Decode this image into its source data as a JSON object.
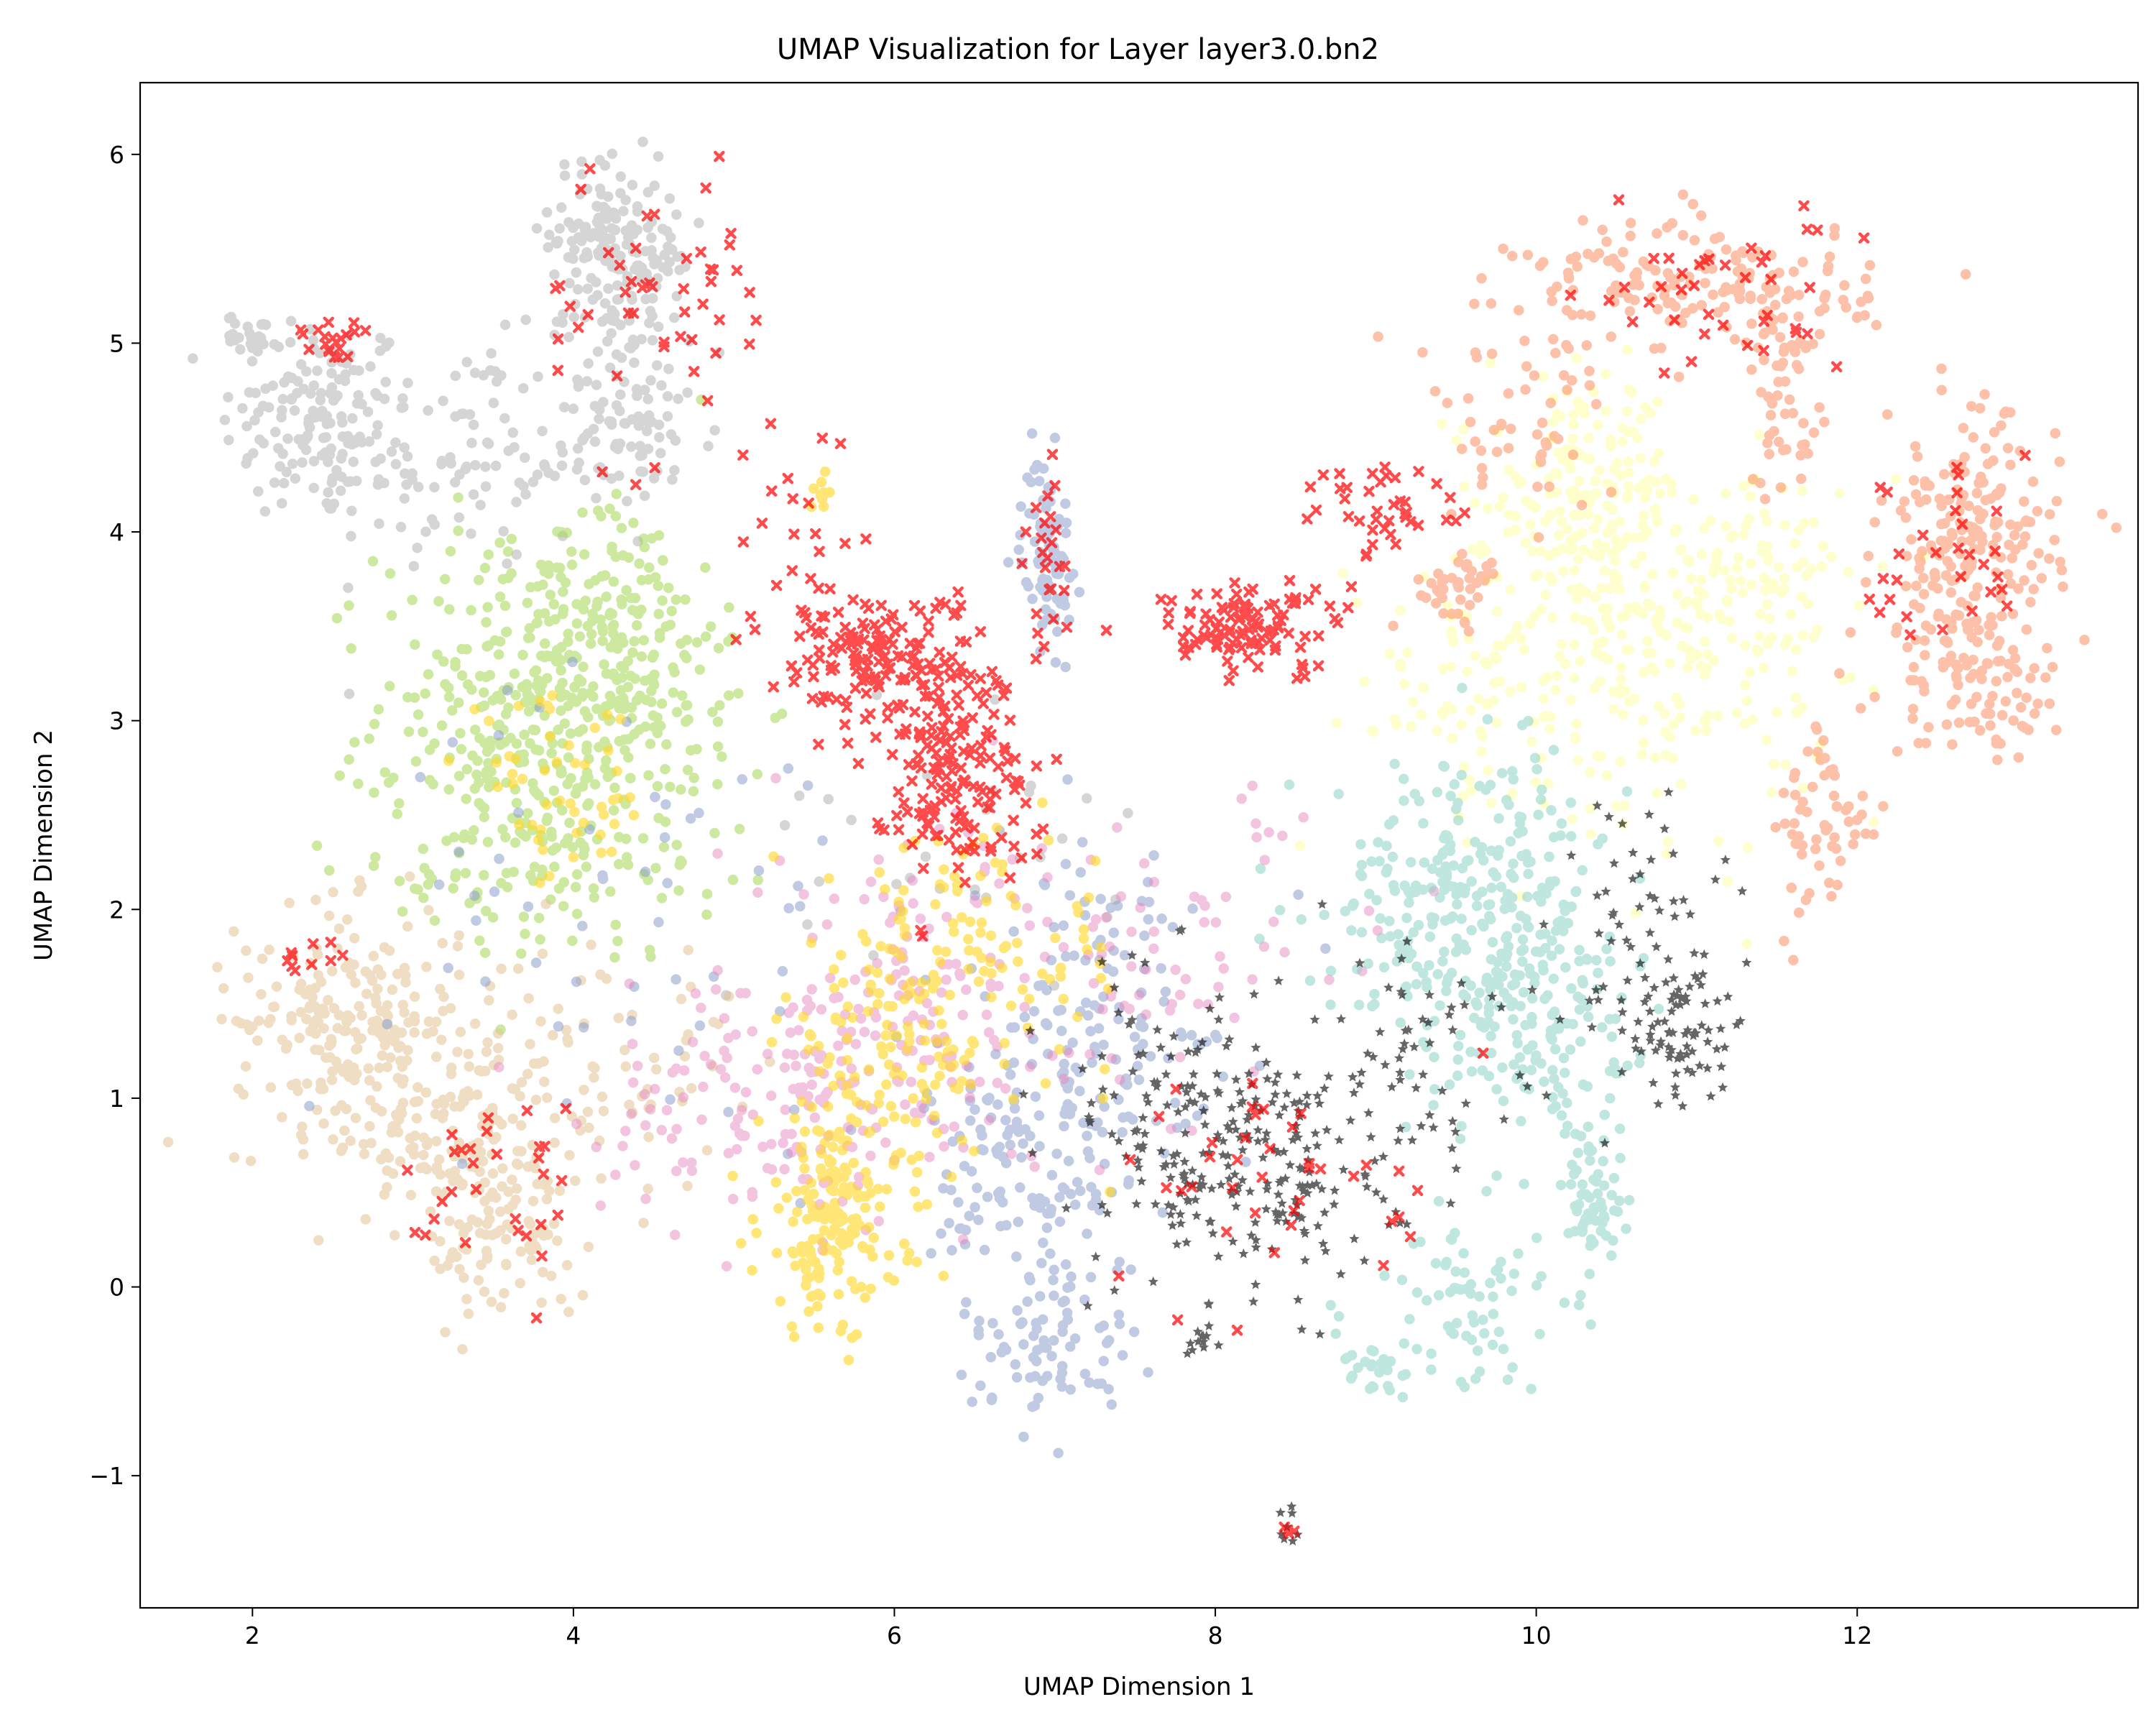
{
  "chart_data": {
    "type": "scatter",
    "title": "UMAP Visualization for Layer layer3.0.bn2",
    "xlabel": "UMAP Dimension 1",
    "ylabel": "UMAP Dimension 2",
    "xlim": [
      1.3,
      13.75
    ],
    "ylim": [
      -1.7,
      6.38
    ],
    "xticks": [
      2,
      4,
      6,
      8,
      10,
      12
    ],
    "yticks": [
      -1,
      0,
      1,
      2,
      3,
      4,
      5,
      6
    ],
    "xtick_labels": [
      "2",
      "4",
      "6",
      "8",
      "10",
      "12"
    ],
    "ytick_labels": [
      "−1",
      "0",
      "1",
      "2",
      "3",
      "4",
      "5",
      "6"
    ],
    "grid": false,
    "legend": "none",
    "series": [
      {
        "color": "#b3b3b3",
        "marker": "circle",
        "opacity": 0.55,
        "clusters": [
          {
            "cx": 2.4,
            "cy": 4.6,
            "sx": 0.3,
            "sy": 0.28,
            "n": 140
          },
          {
            "cx": 3.3,
            "cy": 4.4,
            "sx": 0.45,
            "sy": 0.3,
            "n": 110
          },
          {
            "cx": 4.2,
            "cy": 5.6,
            "sx": 0.17,
            "sy": 0.2,
            "n": 110
          },
          {
            "cx": 4.35,
            "cy": 5.2,
            "sx": 0.2,
            "sy": 0.22,
            "n": 90
          },
          {
            "cx": 4.4,
            "cy": 4.5,
            "sx": 0.25,
            "sy": 0.2,
            "n": 70
          },
          {
            "cx": 2.0,
            "cy": 5.05,
            "sx": 0.08,
            "sy": 0.05,
            "n": 25
          },
          {
            "cx": 6.2,
            "cy": 2.3,
            "sx": 0.6,
            "sy": 0.4,
            "n": 30
          }
        ]
      },
      {
        "color": "#a6d854",
        "marker": "circle",
        "opacity": 0.55,
        "clusters": [
          {
            "cx": 3.8,
            "cy": 3.1,
            "sx": 0.5,
            "sy": 0.45,
            "n": 300
          },
          {
            "cx": 4.3,
            "cy": 3.5,
            "sx": 0.3,
            "sy": 0.35,
            "n": 120
          },
          {
            "cx": 3.5,
            "cy": 2.4,
            "sx": 0.45,
            "sy": 0.35,
            "n": 100
          },
          {
            "cx": 4.5,
            "cy": 2.6,
            "sx": 0.4,
            "sy": 0.4,
            "n": 70
          }
        ]
      },
      {
        "color": "#e5c494",
        "marker": "circle",
        "opacity": 0.55,
        "clusters": [
          {
            "cx": 2.6,
            "cy": 1.4,
            "sx": 0.35,
            "sy": 0.3,
            "n": 220
          },
          {
            "cx": 3.3,
            "cy": 0.8,
            "sx": 0.3,
            "sy": 0.3,
            "n": 170
          },
          {
            "cx": 3.6,
            "cy": 0.2,
            "sx": 0.25,
            "sy": 0.2,
            "n": 70
          },
          {
            "cx": 4.2,
            "cy": 1.2,
            "sx": 0.4,
            "sy": 0.35,
            "n": 70
          }
        ]
      },
      {
        "color": "#8da0cb",
        "marker": "circle",
        "opacity": 0.55,
        "clusters": [
          {
            "cx": 6.95,
            "cy": 3.9,
            "sx": 0.08,
            "sy": 0.25,
            "n": 90
          },
          {
            "cx": 6.9,
            "cy": 0.7,
            "sx": 0.35,
            "sy": 0.5,
            "n": 170
          },
          {
            "cx": 7.0,
            "cy": -0.3,
            "sx": 0.25,
            "sy": 0.2,
            "n": 70
          },
          {
            "cx": 7.3,
            "cy": 1.5,
            "sx": 0.5,
            "sy": 0.5,
            "n": 100
          },
          {
            "cx": 4.5,
            "cy": 2.0,
            "sx": 0.8,
            "sy": 0.6,
            "n": 60
          }
        ]
      },
      {
        "color": "#e78ac3",
        "marker": "circle",
        "opacity": 0.5,
        "clusters": [
          {
            "cx": 5.3,
            "cy": 1.0,
            "sx": 0.55,
            "sy": 0.35,
            "n": 150
          },
          {
            "cx": 6.2,
            "cy": 1.5,
            "sx": 0.6,
            "sy": 0.5,
            "n": 150
          },
          {
            "cx": 7.8,
            "cy": 1.8,
            "sx": 0.7,
            "sy": 0.4,
            "n": 60
          }
        ]
      },
      {
        "color": "#ffd92f",
        "marker": "circle",
        "opacity": 0.65,
        "clusters": [
          {
            "cx": 5.6,
            "cy": 0.35,
            "sx": 0.22,
            "sy": 0.3,
            "n": 170
          },
          {
            "cx": 6.0,
            "cy": 1.3,
            "sx": 0.35,
            "sy": 0.4,
            "n": 130
          },
          {
            "cx": 6.6,
            "cy": 1.7,
            "sx": 0.45,
            "sy": 0.35,
            "n": 90
          },
          {
            "cx": 3.9,
            "cy": 2.6,
            "sx": 0.3,
            "sy": 0.25,
            "n": 50
          },
          {
            "cx": 5.55,
            "cy": 4.2,
            "sx": 0.05,
            "sy": 0.04,
            "n": 10
          }
        ]
      },
      {
        "color": "#ffffb3",
        "marker": "circle",
        "opacity": 0.65,
        "clusters": [
          {
            "cx": 10.3,
            "cy": 4.2,
            "sx": 0.3,
            "sy": 0.3,
            "n": 170
          },
          {
            "cx": 10.8,
            "cy": 3.4,
            "sx": 0.5,
            "sy": 0.45,
            "n": 230
          },
          {
            "cx": 9.6,
            "cy": 3.2,
            "sx": 0.45,
            "sy": 0.35,
            "n": 90
          },
          {
            "cx": 11.5,
            "cy": 3.8,
            "sx": 0.35,
            "sy": 0.3,
            "n": 60
          }
        ]
      },
      {
        "color": "#fc8d62",
        "marker": "circle",
        "opacity": 0.55,
        "clusters": [
          {
            "cx": 11.0,
            "cy": 5.3,
            "sx": 0.55,
            "sy": 0.18,
            "n": 170
          },
          {
            "cx": 11.55,
            "cy": 4.75,
            "sx": 0.12,
            "sy": 0.3,
            "n": 60
          },
          {
            "cx": 12.7,
            "cy": 3.9,
            "sx": 0.28,
            "sy": 0.35,
            "n": 210
          },
          {
            "cx": 12.75,
            "cy": 3.2,
            "sx": 0.28,
            "sy": 0.2,
            "n": 80
          },
          {
            "cx": 11.8,
            "cy": 2.4,
            "sx": 0.15,
            "sy": 0.3,
            "n": 60
          },
          {
            "cx": 9.5,
            "cy": 3.7,
            "sx": 0.15,
            "sy": 0.1,
            "n": 40
          },
          {
            "cx": 9.9,
            "cy": 4.6,
            "sx": 0.3,
            "sy": 0.25,
            "n": 50
          }
        ]
      },
      {
        "color": "#8dd3c7",
        "marker": "circle",
        "opacity": 0.55,
        "clusters": [
          {
            "cx": 9.6,
            "cy": 2.1,
            "sx": 0.45,
            "sy": 0.35,
            "n": 270
          },
          {
            "cx": 9.9,
            "cy": 1.4,
            "sx": 0.35,
            "sy": 0.3,
            "n": 150
          },
          {
            "cx": 10.35,
            "cy": 0.5,
            "sx": 0.1,
            "sy": 0.25,
            "n": 70
          },
          {
            "cx": 9.5,
            "cy": -0.1,
            "sx": 0.25,
            "sy": 0.25,
            "n": 70
          },
          {
            "cx": 9.0,
            "cy": -0.45,
            "sx": 0.1,
            "sy": 0.1,
            "n": 25
          }
        ]
      },
      {
        "color": "#000000",
        "marker": "star",
        "opacity": 0.6,
        "clusters": [
          {
            "cx": 8.3,
            "cy": 0.6,
            "sx": 0.45,
            "sy": 0.35,
            "n": 200
          },
          {
            "cx": 7.8,
            "cy": 1.1,
            "sx": 0.35,
            "sy": 0.35,
            "n": 70
          },
          {
            "cx": 10.9,
            "cy": 1.35,
            "sx": 0.15,
            "sy": 0.2,
            "n": 80
          },
          {
            "cx": 10.6,
            "cy": 2.0,
            "sx": 0.25,
            "sy": 0.35,
            "n": 50
          },
          {
            "cx": 9.2,
            "cy": 1.3,
            "sx": 0.4,
            "sy": 0.3,
            "n": 60
          },
          {
            "cx": 7.9,
            "cy": -0.3,
            "sx": 0.05,
            "sy": 0.04,
            "n": 12
          },
          {
            "cx": 8.45,
            "cy": -1.25,
            "sx": 0.04,
            "sy": 0.07,
            "n": 8
          }
        ]
      },
      {
        "color": "#ff0000",
        "marker": "x",
        "opacity": 0.7,
        "clusters": [
          {
            "cx": 6.35,
            "cy": 2.8,
            "sx": 0.25,
            "sy": 0.3,
            "n": 180
          },
          {
            "cx": 5.85,
            "cy": 3.35,
            "sx": 0.3,
            "sy": 0.17,
            "n": 140
          },
          {
            "cx": 8.2,
            "cy": 3.5,
            "sx": 0.3,
            "sy": 0.12,
            "n": 110
          },
          {
            "cx": 9.1,
            "cy": 4.1,
            "sx": 0.25,
            "sy": 0.12,
            "n": 40
          },
          {
            "cx": 6.95,
            "cy": 3.85,
            "sx": 0.08,
            "sy": 0.3,
            "n": 25
          },
          {
            "cx": 2.5,
            "cy": 5.0,
            "sx": 0.1,
            "sy": 0.06,
            "n": 20
          },
          {
            "cx": 4.5,
            "cy": 5.2,
            "sx": 0.35,
            "sy": 0.45,
            "n": 50
          },
          {
            "cx": 11.1,
            "cy": 5.25,
            "sx": 0.4,
            "sy": 0.2,
            "n": 40
          },
          {
            "cx": 12.5,
            "cy": 3.9,
            "sx": 0.3,
            "sy": 0.3,
            "n": 30
          },
          {
            "cx": 3.6,
            "cy": 0.5,
            "sx": 0.3,
            "sy": 0.3,
            "n": 30
          },
          {
            "cx": 2.4,
            "cy": 1.8,
            "sx": 0.1,
            "sy": 0.1,
            "n": 10
          },
          {
            "cx": 5.5,
            "cy": 4.0,
            "sx": 0.3,
            "sy": 0.3,
            "n": 20
          },
          {
            "cx": 8.5,
            "cy": 0.6,
            "sx": 0.5,
            "sy": 0.3,
            "n": 40
          },
          {
            "cx": 8.45,
            "cy": -1.3,
            "sx": 0.02,
            "sy": 0.02,
            "n": 4
          }
        ]
      }
    ]
  }
}
